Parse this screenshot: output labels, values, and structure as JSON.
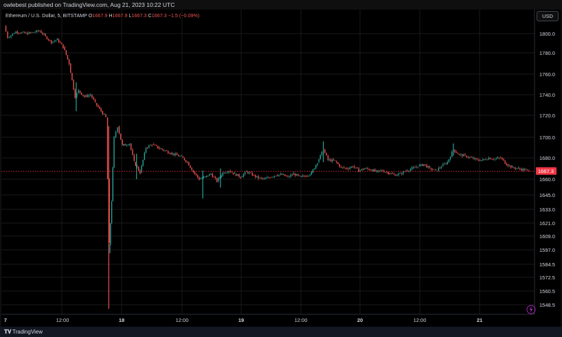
{
  "header": {
    "published": "owlebest published on TradingView.com, Aug 21, 2023 10:22 UTC"
  },
  "currency_button": "USD",
  "footer": {
    "logo_icon": "tradingview-logo-icon",
    "brand": "TradingView"
  },
  "colors": {
    "up": "#26a69a",
    "down": "#ef5350",
    "last_price": "#f23645",
    "grid": "#1a1a1a",
    "text": "#d1d4dc"
  },
  "chart_data": {
    "type": "candlestick",
    "symbol": "Ethereum / U.S. Dollar, 5, BITSTAMP",
    "ohlc": {
      "O_label": "O",
      "O": "1667.9",
      "H_label": "H",
      "H": "1667.9",
      "L_label": "L",
      "L": "1667.3",
      "C_label": "C",
      "C": "1667.3",
      "change": "−1.5 (−0.09%)"
    },
    "last_price": 1667.3,
    "last_price_label": "1667.3",
    "y_ticks": [
      1800.0,
      1780.0,
      1760.0,
      1740.0,
      1720.0,
      1700.0,
      1680.0,
      1660.0,
      1645.0,
      1633.0,
      1621.0,
      1609.0,
      1597.0,
      1584.5,
      1572.5,
      1560.5,
      1548.5
    ],
    "y_tick_labels": [
      "1800.0",
      "1780.0",
      "1760.0",
      "1740.0",
      "1720.0",
      "1700.0",
      "1680.0",
      "1660.0",
      "1645.0",
      "1633.0",
      "1621.0",
      "1609.0",
      "1597.0",
      "1584.5",
      "1572.5",
      "1560.5",
      "1548.5"
    ],
    "x_tick_labels": [
      "7",
      "12:00",
      "18",
      "12:00",
      "19",
      "12:00",
      "20",
      "12:00",
      "21"
    ],
    "grid": true,
    "price_path": [
      [
        0,
        1808
      ],
      [
        0.3,
        1796
      ],
      [
        1,
        1802
      ],
      [
        2,
        1800
      ],
      [
        3,
        1803
      ],
      [
        3.5,
        1797
      ],
      [
        4,
        1791
      ],
      [
        4.5,
        1794
      ],
      [
        5,
        1786
      ],
      [
        5.5,
        1770
      ],
      [
        6,
        1738
      ],
      [
        6.3,
        1744
      ],
      [
        6.8,
        1738
      ],
      [
        7.3,
        1740
      ],
      [
        7.7,
        1732
      ],
      [
        8.2,
        1724
      ],
      [
        8.6,
        1718
      ],
      [
        8.9,
        1602
      ],
      [
        9.1,
        1640
      ],
      [
        9.3,
        1700
      ],
      [
        9.6,
        1710
      ],
      [
        10,
        1692
      ],
      [
        10.6,
        1694
      ],
      [
        11,
        1676
      ],
      [
        11.5,
        1666
      ],
      [
        12,
        1690
      ],
      [
        12.5,
        1693
      ],
      [
        13,
        1690
      ],
      [
        14,
        1685
      ],
      [
        15,
        1681
      ],
      [
        15.5,
        1676
      ],
      [
        16,
        1667
      ],
      [
        16.5,
        1660
      ],
      [
        17,
        1662
      ],
      [
        17.5,
        1665
      ],
      [
        18,
        1658
      ],
      [
        18.5,
        1666
      ],
      [
        19,
        1668
      ],
      [
        19.5,
        1665
      ],
      [
        20,
        1662
      ],
      [
        20.5,
        1667
      ],
      [
        21,
        1664
      ],
      [
        21.5,
        1661
      ],
      [
        22,
        1660
      ],
      [
        22.5,
        1662
      ],
      [
        23,
        1664
      ],
      [
        23.5,
        1664
      ],
      [
        24,
        1662
      ],
      [
        24.5,
        1665
      ],
      [
        25,
        1662
      ],
      [
        25.5,
        1663
      ],
      [
        26,
        1666
      ],
      [
        26.5,
        1676
      ],
      [
        27,
        1688
      ],
      [
        27.4,
        1678
      ],
      [
        28,
        1677
      ],
      [
        28.5,
        1671
      ],
      [
        29,
        1670
      ],
      [
        29.5,
        1672
      ],
      [
        30,
        1668
      ],
      [
        30.5,
        1670
      ],
      [
        31,
        1669
      ],
      [
        31.5,
        1667
      ],
      [
        32,
        1668
      ],
      [
        32.5,
        1666
      ],
      [
        33,
        1664
      ],
      [
        33.5,
        1665
      ],
      [
        34,
        1668
      ],
      [
        34.5,
        1670
      ],
      [
        35,
        1672
      ],
      [
        35.5,
        1674
      ],
      [
        36,
        1670
      ],
      [
        36.5,
        1668
      ],
      [
        37,
        1672
      ],
      [
        37.5,
        1676
      ],
      [
        38,
        1688
      ],
      [
        38.5,
        1683
      ],
      [
        39,
        1682
      ],
      [
        39.5,
        1680
      ],
      [
        40,
        1678
      ],
      [
        40.5,
        1678
      ],
      [
        41,
        1680
      ],
      [
        41.5,
        1679
      ],
      [
        42,
        1680
      ],
      [
        42.5,
        1674
      ],
      [
        43,
        1671
      ],
      [
        43.5,
        1670
      ],
      [
        44,
        1668.8
      ],
      [
        44.4,
        1667.3
      ]
    ],
    "spikes": [
      {
        "t": 8.85,
        "high": 1710,
        "low": 1545
      },
      {
        "t": 8.95,
        "high": 1602,
        "low": 1594
      },
      {
        "t": 6.1,
        "high": 1752,
        "low": 1724
      },
      {
        "t": 11.2,
        "high": 1684,
        "low": 1660
      },
      {
        "t": 16.8,
        "high": 1668,
        "low": 1642
      },
      {
        "t": 27.0,
        "high": 1696,
        "low": 1676
      },
      {
        "t": 38.0,
        "high": 1694,
        "low": 1682
      },
      {
        "t": 18.3,
        "high": 1670,
        "low": 1652
      }
    ]
  }
}
